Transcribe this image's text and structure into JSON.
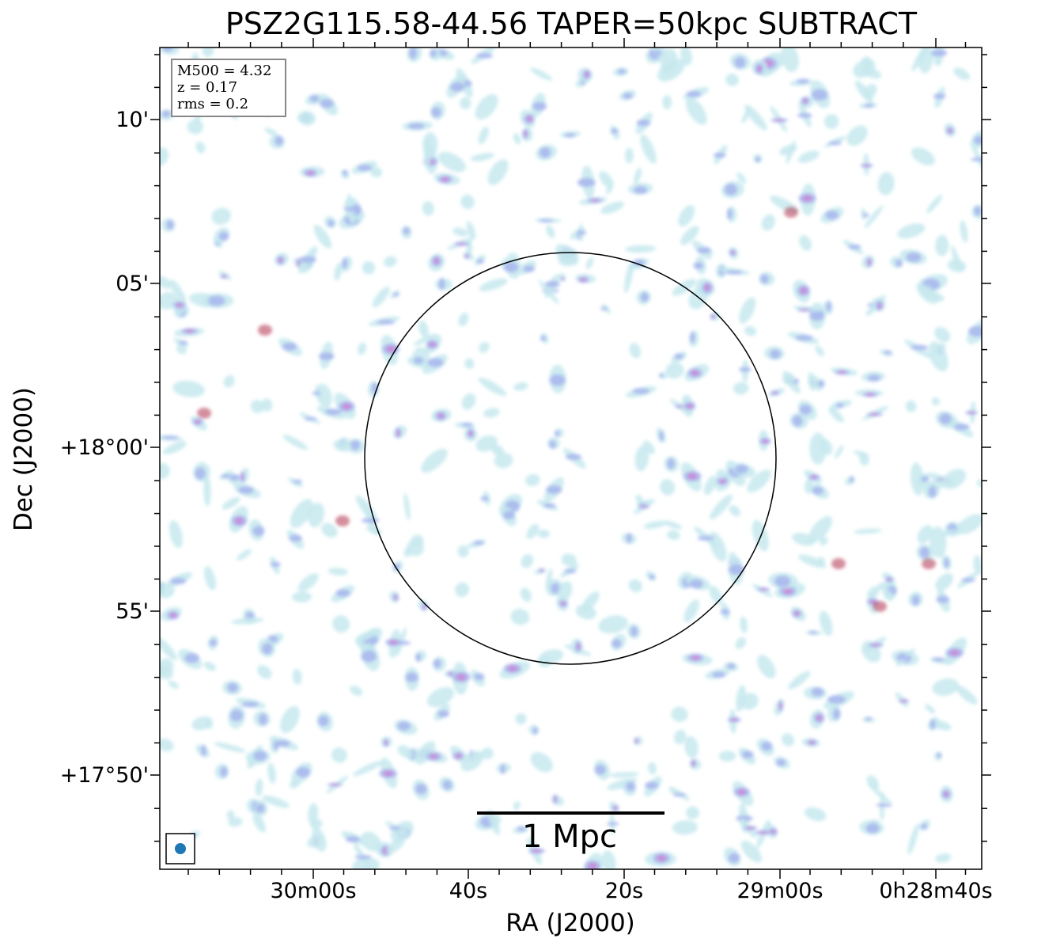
{
  "title": "PSZ2G115.58-44.56 TAPER=50kpc SUBTRACT",
  "info": {
    "m500": "M500 = 4.32",
    "z": "z = 0.17",
    "rms": "rms = 0.2"
  },
  "scalebar_label": "1 Mpc",
  "x_axis": {
    "label": "RA (J2000)",
    "ticks": [
      "30m00s",
      "40s",
      "20s",
      "29m00s",
      "0h28m40s"
    ]
  },
  "y_axis": {
    "label": "Dec (J2000)",
    "ticks": [
      "10'",
      "05'",
      "+18°00'",
      "55'",
      "+17°50'"
    ]
  },
  "colors": {
    "emission_low": "#c7e9ef",
    "emission_mid": "#a9b8ee",
    "emission_high": "#c98ad8",
    "emission_peak": "#b8405a",
    "beam": "#1f77b4",
    "circle": "#000000"
  }
}
